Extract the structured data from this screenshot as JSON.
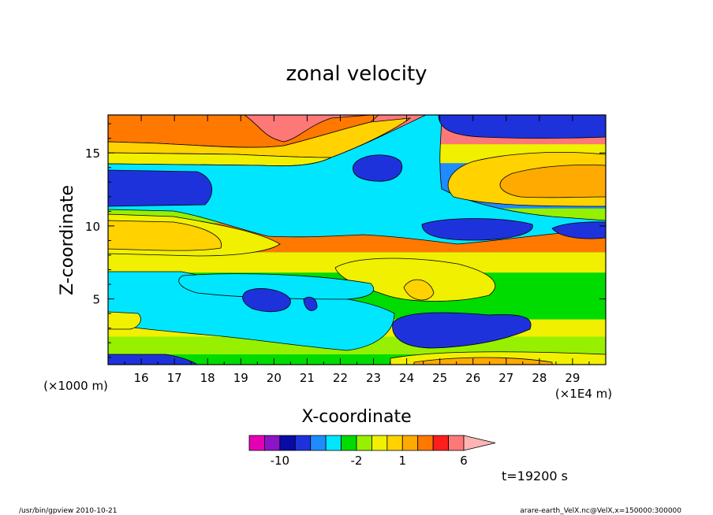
{
  "chart_data": {
    "type": "heatmap",
    "title": "zonal velocity",
    "xlabel": "X-coordinate",
    "ylabel": "Z-coordinate",
    "x_unit": "(×1E4 m)",
    "y_unit": "(×1000 m)",
    "xlim": [
      15.0,
      30.0
    ],
    "ylim": [
      0.5,
      17.6
    ],
    "x_ticks": [
      "16",
      "17",
      "18",
      "19",
      "20",
      "21",
      "22",
      "23",
      "24",
      "25",
      "26",
      "27",
      "28",
      "29"
    ],
    "y_ticks": [
      "5",
      "10",
      "15"
    ],
    "time_label": "t=19200 s",
    "colorbar": {
      "levels": [
        -14,
        -12,
        -10,
        -8,
        -6,
        -4,
        -3,
        -2,
        -1,
        0,
        1,
        2,
        3,
        4,
        6,
        8,
        10
      ],
      "tick_labels": [
        "-10",
        "-2",
        "1",
        "6"
      ],
      "colors": [
        "#e600b4",
        "#8c14c8",
        "#0a0aa6",
        "#1e32dc",
        "#1e8cff",
        "#00e6ff",
        "#00dc00",
        "#96f000",
        "#f0f000",
        "#ffd200",
        "#ffaa00",
        "#ff7800",
        "#ff1e1e",
        "#ff7878",
        "#ffb4b4"
      ]
    },
    "band_levels_bottom_to_top": [
      {
        "z_from": 0.5,
        "z_to": 1.2,
        "value": -3
      },
      {
        "z_from": 1.2,
        "z_to": 2.4,
        "value": -1.5
      },
      {
        "z_from": 2.4,
        "z_to": 3.6,
        "value": -0.5
      },
      {
        "z_from": 3.6,
        "z_to": 6.8,
        "value": -2.5
      },
      {
        "z_from": 6.8,
        "z_to": 8.2,
        "value": -0.5
      },
      {
        "z_from": 8.2,
        "z_to": 10.2,
        "value": 2
      },
      {
        "z_from": 10.2,
        "z_to": 11.2,
        "value": -1.5
      },
      {
        "z_from": 11.2,
        "z_to": 14.3,
        "value": -5
      },
      {
        "z_from": 14.3,
        "z_to": 15.6,
        "value": -0.5
      },
      {
        "z_from": 15.6,
        "z_to": 17.6,
        "value": 4
      }
    ]
  },
  "footer": {
    "left": "/usr/bin/gpview   2010-10-21",
    "right": "arare-earth_VelX.nc@VelX,x=150000:300000"
  }
}
